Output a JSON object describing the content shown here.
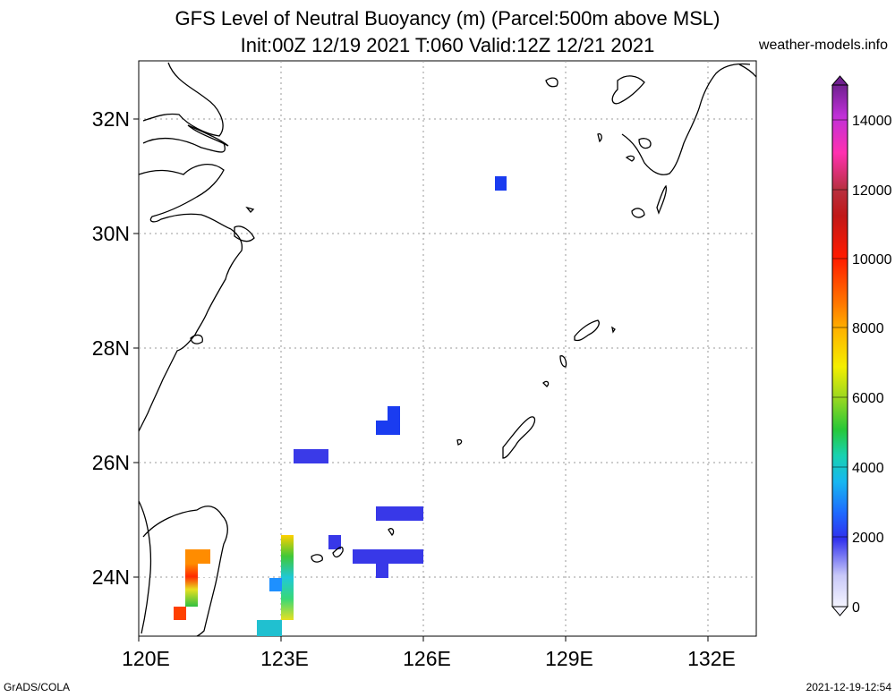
{
  "header": {
    "title_line1": "GFS Level of Neutral Buoyancy (m) (Parcel:500m above MSL)",
    "title_line2": "Init:00Z 12/19 2021 T:060 Valid:12Z 12/21 2021",
    "site": "weather-models.info"
  },
  "footer": {
    "left": "GrADS/COLA",
    "right": "2021-12-19-12:54"
  },
  "map": {
    "lon_range": [
      120,
      133
    ],
    "lat_range": [
      23,
      33
    ],
    "x_ticks": [
      "120E",
      "123E",
      "126E",
      "129E",
      "132E"
    ],
    "y_ticks": [
      "24N",
      "26N",
      "28N",
      "30N",
      "32N"
    ],
    "grid": "dotted"
  },
  "colorbar": {
    "ticks": [
      "0",
      "2000",
      "4000",
      "6000",
      "8000",
      "10000",
      "12000",
      "14000"
    ]
  }
}
